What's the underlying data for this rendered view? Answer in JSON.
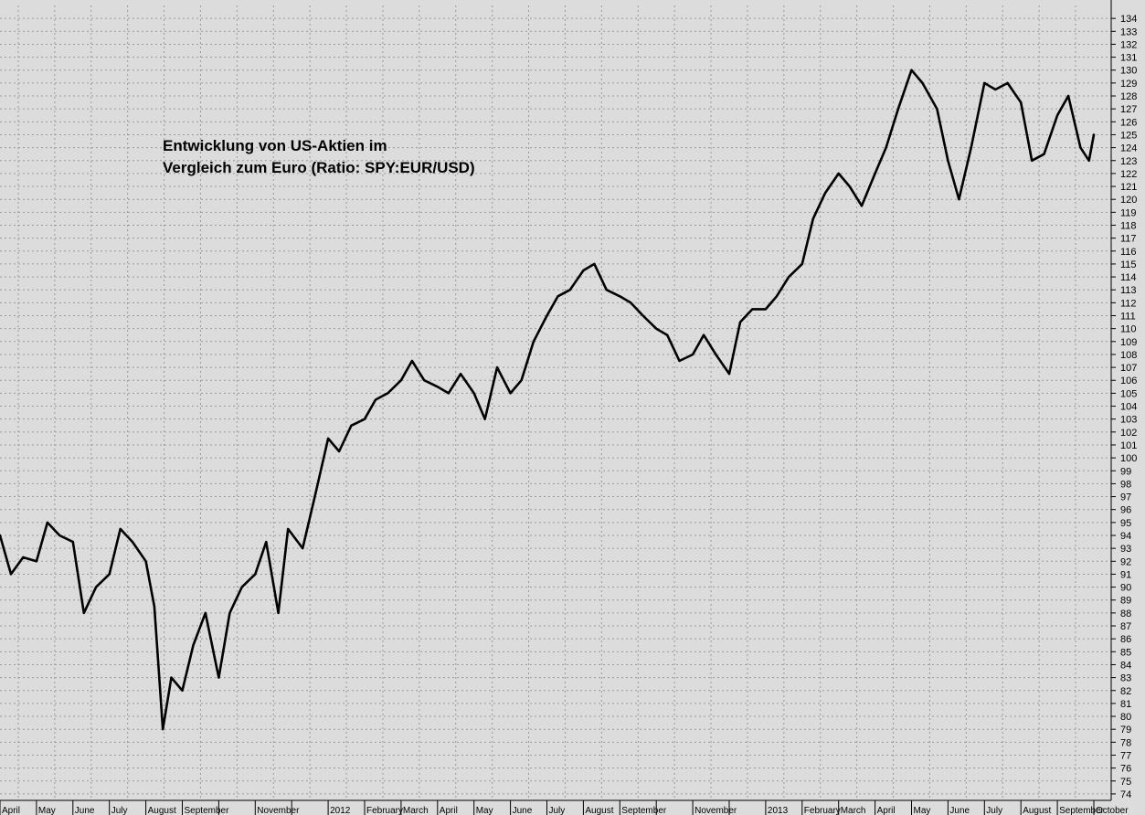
{
  "chart_data": {
    "type": "line",
    "title_lines": [
      "Entwicklung von US-Aktien im",
      "Vergleich zum Euro (Ratio: SPY:EUR/USD)"
    ],
    "xlabel": "",
    "ylabel": "",
    "ylim": [
      73.5,
      135
    ],
    "y_ticks": [
      74,
      75,
      76,
      77,
      78,
      79,
      80,
      81,
      82,
      83,
      84,
      85,
      86,
      87,
      88,
      89,
      90,
      91,
      92,
      93,
      94,
      95,
      96,
      97,
      98,
      99,
      100,
      101,
      102,
      103,
      104,
      105,
      106,
      107,
      108,
      109,
      110,
      111,
      112,
      113,
      114,
      115,
      116,
      117,
      118,
      119,
      120,
      121,
      122,
      123,
      124,
      125,
      126,
      127,
      128,
      129,
      130,
      131,
      132,
      133,
      134
    ],
    "y_axis_side": "right",
    "grid": true,
    "x_tick_labels": [
      "April",
      "May",
      "June",
      "July",
      "August",
      "September",
      "November",
      "2012",
      "February",
      "March",
      "April",
      "May",
      "June",
      "July",
      "August",
      "September",
      "November",
      "2013",
      "February",
      "March",
      "April",
      "May",
      "June",
      "July",
      "August",
      "September",
      "October"
    ],
    "x_months": [
      "2011-04",
      "2011-05",
      "2011-06",
      "2011-07",
      "2011-08",
      "2011-09",
      "2011-10",
      "2011-11",
      "2011-12",
      "2012-01",
      "2012-02",
      "2012-03",
      "2012-04",
      "2012-05",
      "2012-06",
      "2012-07",
      "2012-08",
      "2012-09",
      "2012-10",
      "2012-11",
      "2012-12",
      "2013-01",
      "2013-02",
      "2013-03",
      "2013-04",
      "2013-05",
      "2013-06",
      "2013-07",
      "2013-08",
      "2013-09",
      "2013-10"
    ],
    "series": [
      {
        "color": "#000000",
        "x": [
          "2011-04",
          "2011-04-10",
          "2011-04-20",
          "2011-05-01",
          "2011-05-10",
          "2011-05-20",
          "2011-06-01",
          "2011-06-10",
          "2011-06-20",
          "2011-07-01",
          "2011-07-10",
          "2011-07-20",
          "2011-08-01",
          "2011-08-08",
          "2011-08-15",
          "2011-08-22",
          "2011-09-01",
          "2011-09-10",
          "2011-09-20",
          "2011-10-01",
          "2011-10-10",
          "2011-10-20",
          "2011-11-01",
          "2011-11-10",
          "2011-11-20",
          "2011-11-28",
          "2011-12-10",
          "2011-12-20",
          "2012-01-01",
          "2012-01-10",
          "2012-01-20",
          "2012-02-01",
          "2012-02-10",
          "2012-02-20",
          "2012-03-01",
          "2012-03-10",
          "2012-03-20",
          "2012-04-01",
          "2012-04-10",
          "2012-04-20",
          "2012-05-01",
          "2012-05-10",
          "2012-05-20",
          "2012-06-01",
          "2012-06-10",
          "2012-06-20",
          "2012-07-01",
          "2012-07-10",
          "2012-07-20",
          "2012-08-01",
          "2012-08-10",
          "2012-08-20",
          "2012-09-01",
          "2012-09-10",
          "2012-09-20",
          "2012-10-01",
          "2012-10-10",
          "2012-10-20",
          "2012-11-01",
          "2012-11-10",
          "2012-11-20",
          "2012-12-01",
          "2012-12-10",
          "2012-12-20",
          "2013-01-01",
          "2013-01-10",
          "2013-01-20",
          "2013-02-01",
          "2013-02-10",
          "2013-02-20",
          "2013-03-01",
          "2013-03-10",
          "2013-03-20",
          "2013-04-01",
          "2013-04-10",
          "2013-04-20",
          "2013-05-01",
          "2013-05-10",
          "2013-05-22",
          "2013-06-01",
          "2013-06-10",
          "2013-06-20",
          "2013-07-01",
          "2013-07-10",
          "2013-07-20",
          "2013-08-01",
          "2013-08-10",
          "2013-08-20",
          "2013-09-01",
          "2013-09-10",
          "2013-09-20",
          "2013-09-27",
          "2013-10-01"
        ],
        "y": [
          94,
          91,
          92.3,
          92,
          95,
          94,
          93.5,
          88,
          90,
          91,
          94.5,
          93.5,
          92,
          88.5,
          79,
          83,
          82,
          85.5,
          88,
          83,
          88,
          90,
          91,
          93.5,
          88,
          94.5,
          93,
          97,
          101.5,
          100.5,
          102.5,
          103,
          104.5,
          105,
          106,
          107.5,
          106,
          105.5,
          105,
          106.5,
          105,
          103,
          107,
          105,
          106,
          109,
          111,
          112.5,
          113,
          114.5,
          115,
          113,
          112.5,
          112,
          111,
          110,
          109.5,
          107.5,
          108,
          109.5,
          108,
          106.5,
          110.5,
          111.5,
          111.5,
          112.5,
          114,
          115,
          118.5,
          120.5,
          122,
          121,
          119.5,
          122,
          124,
          127,
          130,
          129,
          127,
          123,
          120,
          124,
          129,
          128.5,
          129,
          127.5,
          123,
          123.5,
          126.5,
          128,
          124,
          123,
          125
        ]
      }
    ]
  }
}
